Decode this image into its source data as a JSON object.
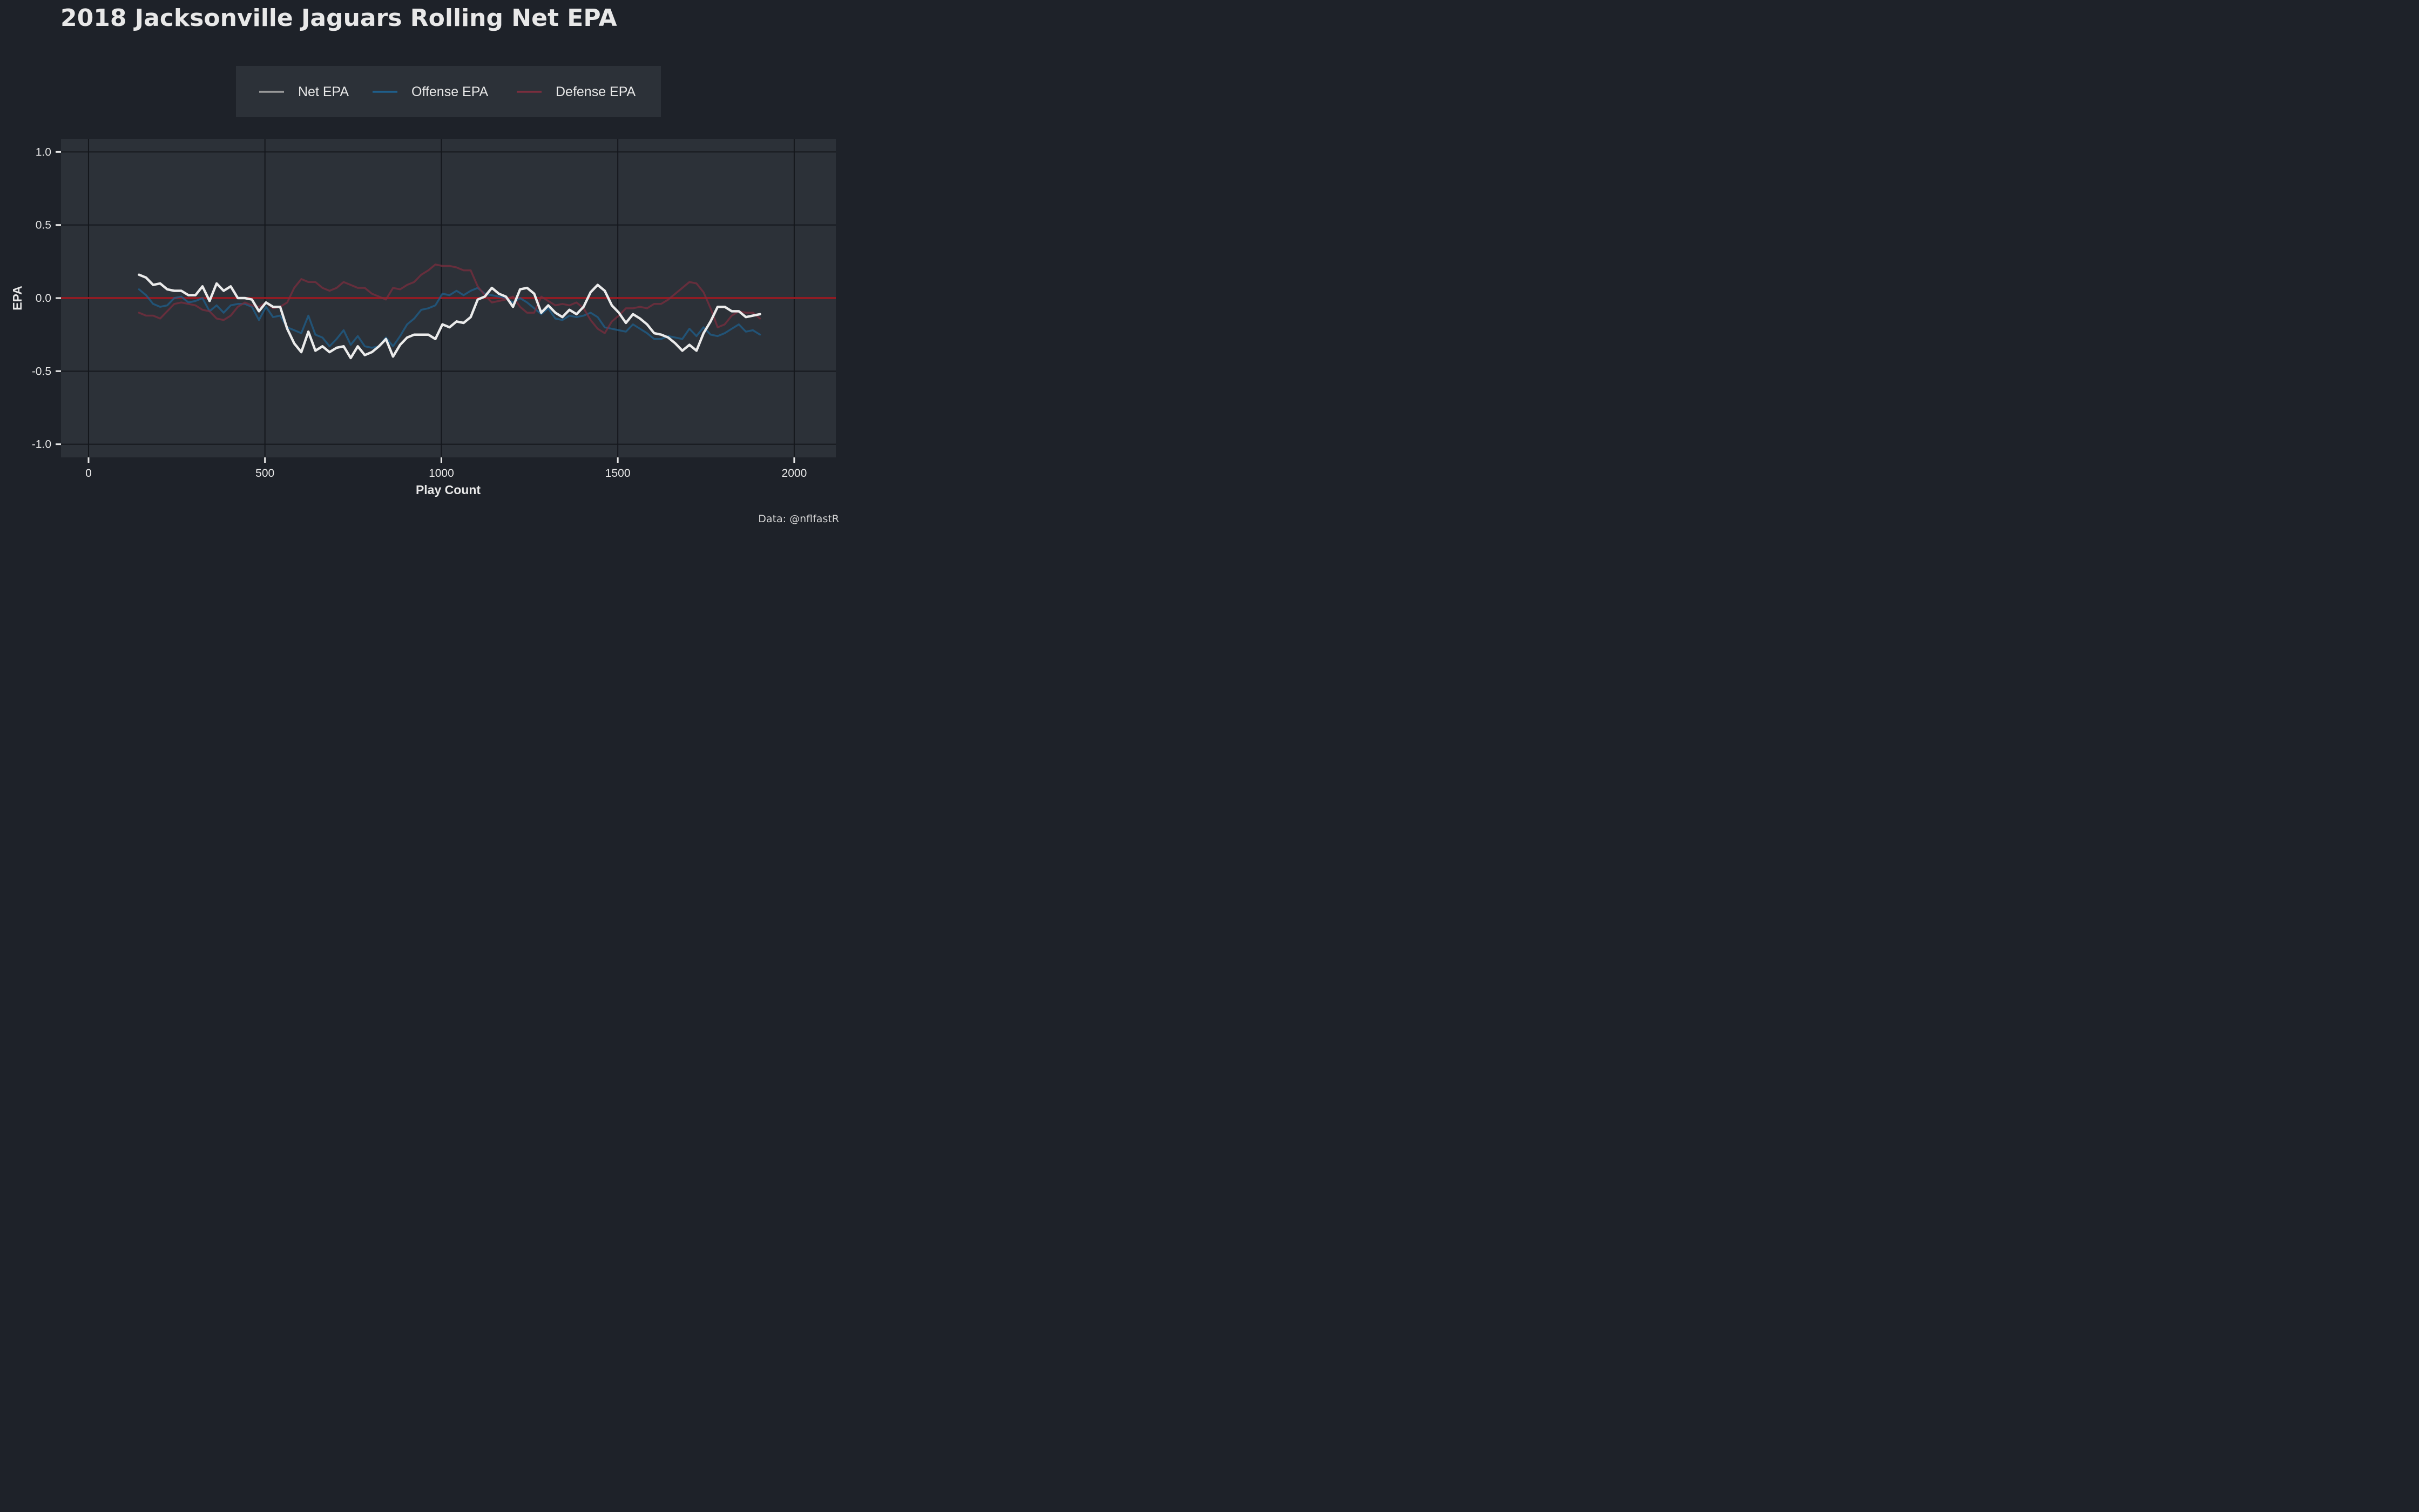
{
  "chart_data": {
    "type": "line",
    "title": "2018 Jacksonville Jaguars Rolling Net EPA",
    "xlabel": "Play Count",
    "ylabel": "EPA",
    "xlim": [
      -78,
      2118
    ],
    "ylim": [
      -1.09,
      1.09
    ],
    "x_ticks": [
      0,
      500,
      1000,
      1500,
      2000
    ],
    "y_ticks": [
      1.0,
      0.5,
      0.0,
      -0.5,
      -1.0
    ],
    "y_tick_labels": [
      "1.0",
      "0.5",
      "0.0",
      "-0.5",
      "-1.0"
    ],
    "grid": true,
    "legend_position": "top",
    "reference_line": {
      "y": 0,
      "color": "#8f1c24"
    },
    "x": [
      143,
      163,
      183,
      203,
      223,
      243,
      263,
      283,
      303,
      323,
      343,
      363,
      383,
      403,
      423,
      443,
      463,
      483,
      503,
      523,
      543,
      563,
      583,
      603,
      623,
      643,
      663,
      683,
      703,
      723,
      743,
      763,
      783,
      803,
      823,
      843,
      863,
      883,
      903,
      923,
      943,
      963,
      983,
      1003,
      1023,
      1043,
      1063,
      1083,
      1103,
      1123,
      1143,
      1163,
      1183,
      1203,
      1223,
      1243,
      1263,
      1283,
      1303,
      1323,
      1343,
      1363,
      1383,
      1403,
      1423,
      1443,
      1463,
      1483,
      1503,
      1523,
      1543,
      1563,
      1583,
      1603,
      1623,
      1643,
      1663,
      1683,
      1703,
      1723,
      1743,
      1763,
      1783,
      1803,
      1823,
      1843,
      1863,
      1883,
      1903
    ],
    "series": [
      {
        "name": "Net EPA",
        "color": "#ebebeb",
        "values": [
          0.16,
          0.14,
          0.09,
          0.1,
          0.06,
          0.05,
          0.05,
          0.02,
          0.02,
          0.08,
          -0.02,
          0.1,
          0.05,
          0.08,
          0.0,
          0.0,
          -0.01,
          -0.09,
          -0.03,
          -0.06,
          -0.06,
          -0.21,
          -0.31,
          -0.37,
          -0.23,
          -0.36,
          -0.33,
          -0.37,
          -0.34,
          -0.33,
          -0.41,
          -0.33,
          -0.39,
          -0.37,
          -0.33,
          -0.28,
          -0.4,
          -0.32,
          -0.27,
          -0.25,
          -0.25,
          -0.25,
          -0.28,
          -0.18,
          -0.2,
          -0.16,
          -0.17,
          -0.13,
          -0.01,
          0.01,
          0.07,
          0.03,
          0.01,
          -0.06,
          0.06,
          0.07,
          0.03,
          -0.1,
          -0.05,
          -0.1,
          -0.13,
          -0.08,
          -0.11,
          -0.06,
          0.04,
          0.09,
          0.05,
          -0.05,
          -0.1,
          -0.17,
          -0.11,
          -0.14,
          -0.18,
          -0.24,
          -0.25,
          -0.27,
          -0.31,
          -0.36,
          -0.32,
          -0.36,
          -0.24,
          -0.16,
          -0.06,
          -0.06,
          -0.09,
          -0.09,
          -0.13,
          -0.12,
          -0.11
        ]
      },
      {
        "name": "Offense EPA",
        "color": "#1f5f8b",
        "values": [
          0.06,
          0.02,
          -0.04,
          -0.06,
          -0.05,
          0.0,
          0.01,
          -0.03,
          -0.02,
          0.0,
          -0.09,
          -0.05,
          -0.1,
          -0.05,
          -0.04,
          -0.04,
          -0.06,
          -0.15,
          -0.06,
          -0.13,
          -0.12,
          -0.2,
          -0.22,
          -0.24,
          -0.12,
          -0.25,
          -0.27,
          -0.33,
          -0.28,
          -0.22,
          -0.32,
          -0.26,
          -0.33,
          -0.34,
          -0.33,
          -0.27,
          -0.33,
          -0.26,
          -0.18,
          -0.14,
          -0.08,
          -0.07,
          -0.05,
          0.03,
          0.02,
          0.05,
          0.02,
          0.05,
          0.07,
          0.03,
          0.02,
          0.01,
          0.0,
          -0.03,
          0.0,
          -0.03,
          -0.07,
          -0.11,
          -0.07,
          -0.14,
          -0.15,
          -0.12,
          -0.13,
          -0.12,
          -0.1,
          -0.13,
          -0.2,
          -0.21,
          -0.22,
          -0.23,
          -0.18,
          -0.21,
          -0.24,
          -0.28,
          -0.28,
          -0.26,
          -0.27,
          -0.28,
          -0.21,
          -0.26,
          -0.2,
          -0.25,
          -0.26,
          -0.24,
          -0.21,
          -0.18,
          -0.23,
          -0.22,
          -0.25
        ]
      },
      {
        "name": "Defense EPA",
        "color": "#7a2e3e",
        "values": [
          -0.1,
          -0.12,
          -0.12,
          -0.14,
          -0.09,
          -0.04,
          -0.03,
          -0.04,
          -0.05,
          -0.08,
          -0.09,
          -0.14,
          -0.15,
          -0.12,
          -0.06,
          -0.03,
          -0.05,
          -0.06,
          -0.03,
          -0.07,
          -0.06,
          -0.03,
          0.07,
          0.13,
          0.11,
          0.11,
          0.07,
          0.05,
          0.07,
          0.11,
          0.09,
          0.07,
          0.07,
          0.03,
          0.01,
          -0.01,
          0.07,
          0.06,
          0.09,
          0.11,
          0.16,
          0.19,
          0.23,
          0.22,
          0.22,
          0.21,
          0.19,
          0.19,
          0.08,
          0.02,
          -0.03,
          -0.02,
          -0.01,
          0.01,
          -0.06,
          -0.1,
          -0.1,
          0.01,
          -0.02,
          -0.05,
          -0.04,
          -0.05,
          -0.03,
          -0.07,
          -0.15,
          -0.21,
          -0.24,
          -0.16,
          -0.12,
          -0.07,
          -0.07,
          -0.06,
          -0.07,
          -0.04,
          -0.04,
          -0.01,
          0.03,
          0.07,
          0.11,
          0.1,
          0.04,
          -0.07,
          -0.2,
          -0.18,
          -0.12,
          -0.09,
          -0.1,
          -0.1,
          -0.14
        ]
      }
    ]
  },
  "source_note": "Data: @nflfastR"
}
